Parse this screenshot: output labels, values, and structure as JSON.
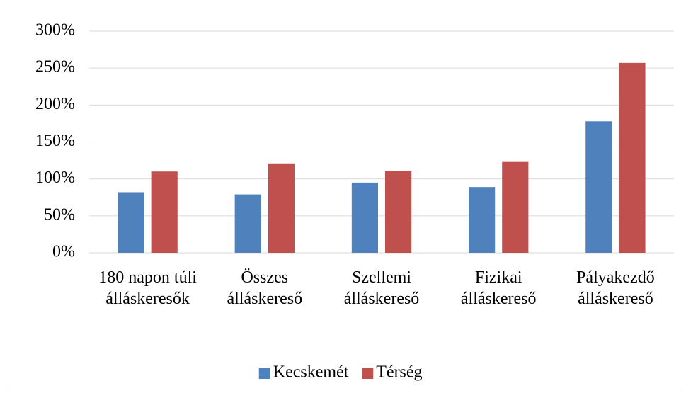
{
  "chart_data": {
    "type": "bar",
    "categories": [
      "180 napon túli álláskeresők",
      "Összes álláskereső",
      "Szellemi álláskereső",
      "Fizikai álláskereső",
      "Pályakezdő álláskereső"
    ],
    "series": [
      {
        "name": "Kecskemét",
        "color": "#4f81bd",
        "values": [
          82,
          79,
          95,
          89,
          178
        ]
      },
      {
        "name": "Térség",
        "color": "#c0504d",
        "values": [
          110,
          121,
          111,
          123,
          257
        ]
      }
    ],
    "ylim": [
      0,
      300
    ],
    "yticks": [
      {
        "value": 0,
        "label": "0%"
      },
      {
        "value": 50,
        "label": "50%"
      },
      {
        "value": 100,
        "label": "100%"
      },
      {
        "value": 150,
        "label": "150%"
      },
      {
        "value": 200,
        "label": "200%"
      },
      {
        "value": 250,
        "label": "250%"
      },
      {
        "value": 300,
        "label": "300%"
      }
    ],
    "grid": true,
    "legend": "bottom"
  }
}
